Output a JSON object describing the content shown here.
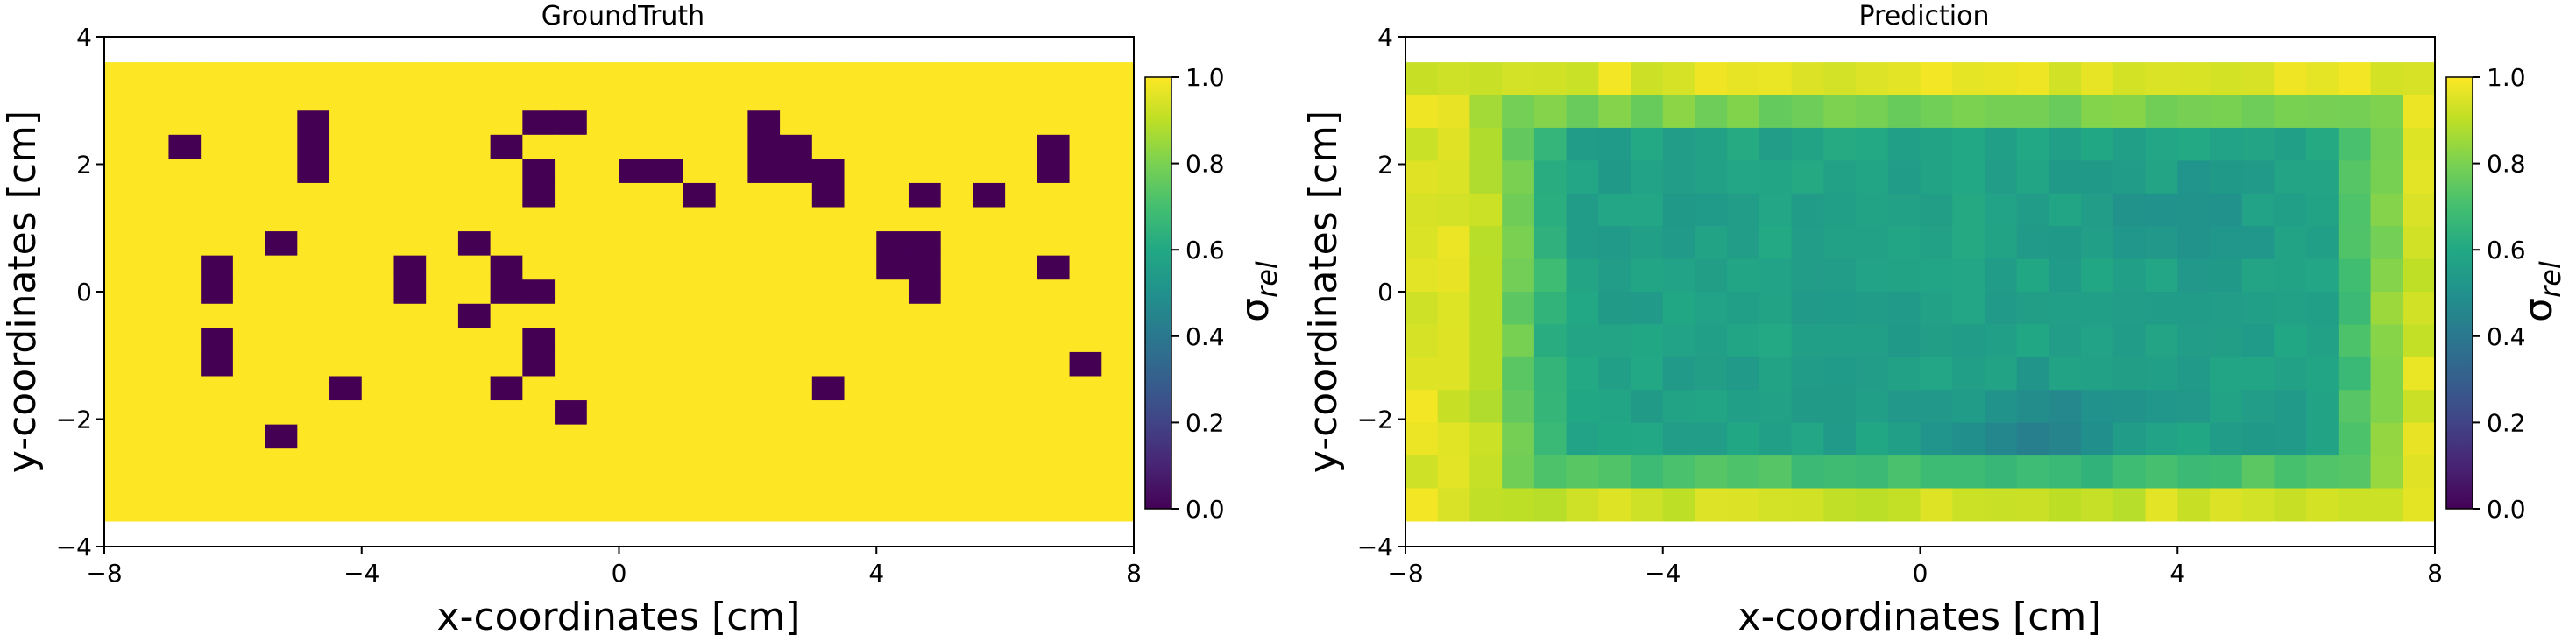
{
  "chart_data": [
    {
      "type": "heatmap",
      "title": "GroundTruth",
      "xlabel": "x-coordinates [cm]",
      "ylabel": "y-coordinates [cm]",
      "xlim": [
        -8,
        8
      ],
      "ylim": [
        -4,
        4
      ],
      "xticks": [
        -8,
        -4,
        0,
        4,
        8
      ],
      "yticks": [
        -4,
        -2,
        0,
        2,
        4
      ],
      "extent": [
        -8,
        8,
        -3.6,
        3.6
      ],
      "grid": false,
      "colormap": "viridis",
      "colorbar": {
        "label": "σ_rel",
        "label_main": "σ",
        "label_sub": "rel",
        "vmin": 0.0,
        "vmax": 1.0,
        "ticks": [
          "0.0",
          "0.2",
          "0.4",
          "0.6",
          "0.8",
          "1.0"
        ]
      },
      "values_encoding": "rows listed from top (y=3.6) to bottom (y=-3.6); 32 columns from x=-8 to x=8; '1' = 1.0 (yellow), '0' = 0.0 (dark purple)",
      "rows": [
        "11111111111111111111111111111111",
        "11111111111111111111111111111111",
        "11111101111110011111011111111111",
        "11011101111101111111001111111011",
        "11111101111110110011000111111011",
        "11111111111110111101110110101111",
        "11111111111111111111111111111111",
        "11111011111011111111111100111111",
        "11101111101101111111111100111011",
        "11101111101100111111111110111111",
        "11111111111011111111111111111111",
        "11101111111110111111111111111111",
        "11101111111110111111111111111101",
        "11111110111101111111110111111111",
        "11111111111111011111111111111111",
        "11111011111111111111111111111111",
        "11111111111111111111111111111111",
        "11111111111111111111111111111111",
        "11111111111111111111111111111111"
      ]
    },
    {
      "type": "heatmap",
      "title": "Prediction",
      "xlabel": "x-coordinates [cm]",
      "ylabel": "y-coordinates [cm]",
      "xlim": [
        -8,
        8
      ],
      "ylim": [
        -4,
        4
      ],
      "xticks": [
        -8,
        -4,
        0,
        4,
        8
      ],
      "yticks": [
        -4,
        -2,
        0,
        2,
        4
      ],
      "extent": [
        -8,
        8,
        -3.6,
        3.6
      ],
      "grid": false,
      "colormap": "viridis",
      "colorbar": {
        "label": "σ_rel",
        "label_main": "σ",
        "label_sub": "rel",
        "vmin": 0.0,
        "vmax": 1.0,
        "ticks": [
          "0.0",
          "0.2",
          "0.4",
          "0.6",
          "0.8",
          "1.0"
        ]
      },
      "values_encoding": "32x14 grid of σ_rel estimates, top row first; the displayed field is yellow (~0.95) near the edges and darker teal (~0.55) in the central region, minimum ~0.45 near (1.8, -2.3)"
    }
  ]
}
